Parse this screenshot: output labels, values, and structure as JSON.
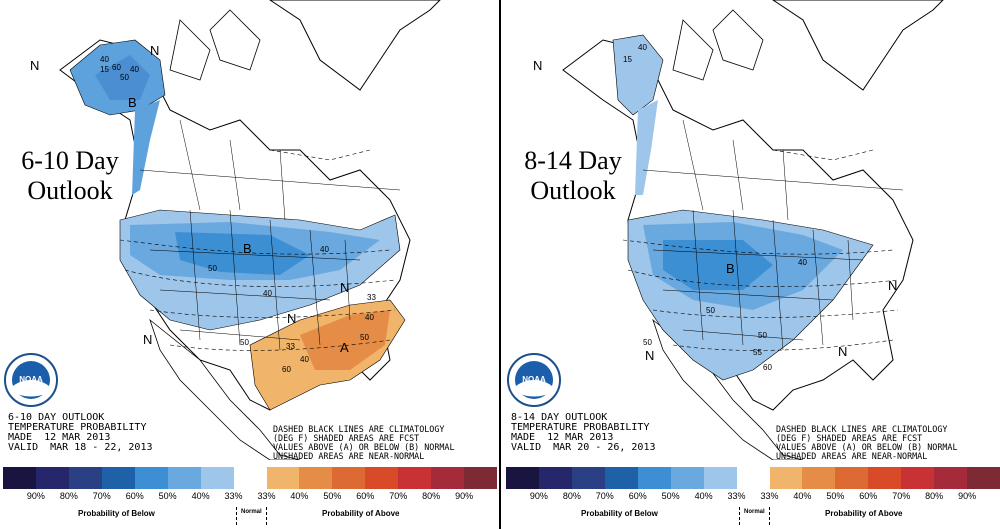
{
  "left": {
    "title_line1": "6-10 Day",
    "title_line2": "Outlook",
    "info_line1": "6-10 DAY OUTLOOK",
    "info_line2": "TEMPERATURE PROBABILITY",
    "info_line3": "MADE  12 MAR 2013",
    "info_line4": "VALID  MAR 18 - 22, 2013",
    "labels": {
      "b1": "B",
      "b2": "B",
      "a1": "A",
      "n1": "N",
      "n2": "N",
      "n3": "N",
      "n4": "N",
      "n5": "N",
      "c40a": "40",
      "c50a": "50",
      "c60a": "60",
      "c40b": "40",
      "c15": "15",
      "c50b": "50",
      "c40c": "40",
      "c40d": "40",
      "c33a": "33",
      "c40e": "40",
      "c50c": "50",
      "c40f": "40",
      "c60b": "60",
      "c50d": "50",
      "c33b": "33"
    }
  },
  "right": {
    "title_line1": "8-14 Day",
    "title_line2": "Outlook",
    "info_line1": "8-14 DAY OUTLOOK",
    "info_line2": "TEMPERATURE PROBABILITY",
    "info_line3": "MADE  12 MAR 2013",
    "info_line4": "VALID  MAR 20 - 26, 2013",
    "labels": {
      "b1": "B",
      "n1": "N",
      "n2": "N",
      "n3": "N",
      "n4": "N",
      "c15": "15",
      "c40a": "40",
      "c50a": "50",
      "c40b": "40",
      "c50b": "50",
      "c55": "55",
      "c60": "60",
      "c50c": "50"
    }
  },
  "legend_note": {
    "line1": "DASHED BLACK LINES ARE CLIMATOLOGY",
    "line2": "(DEG F) SHADED AREAS ARE FCST",
    "line3": "VALUES ABOVE (A) OR BELOW (B) NORMAL",
    "line4": "UNSHADED AREAS ARE NEAR-NORMAL"
  },
  "colorbar": {
    "colors": [
      "#1a1540",
      "#26266a",
      "#2a3f84",
      "#1f61a8",
      "#3d8fd4",
      "#6aa9e0",
      "#9ec5ea",
      "#ffffff",
      "#f0b56a",
      "#e58c46",
      "#dd6a32",
      "#d84a28",
      "#c83234",
      "#a52a3a",
      "#7d2a34"
    ],
    "ticks": [
      "90%",
      "80%",
      "70%",
      "60%",
      "50%",
      "40%",
      "33%",
      "33%",
      "40%",
      "50%",
      "60%",
      "70%",
      "80%",
      "90%"
    ],
    "below_caption": "Probability of Below",
    "normal_caption": "Normal",
    "above_caption": "Probability of Above"
  },
  "logo": {
    "text": "NOAA",
    "icon": "noaa-logo-icon"
  }
}
